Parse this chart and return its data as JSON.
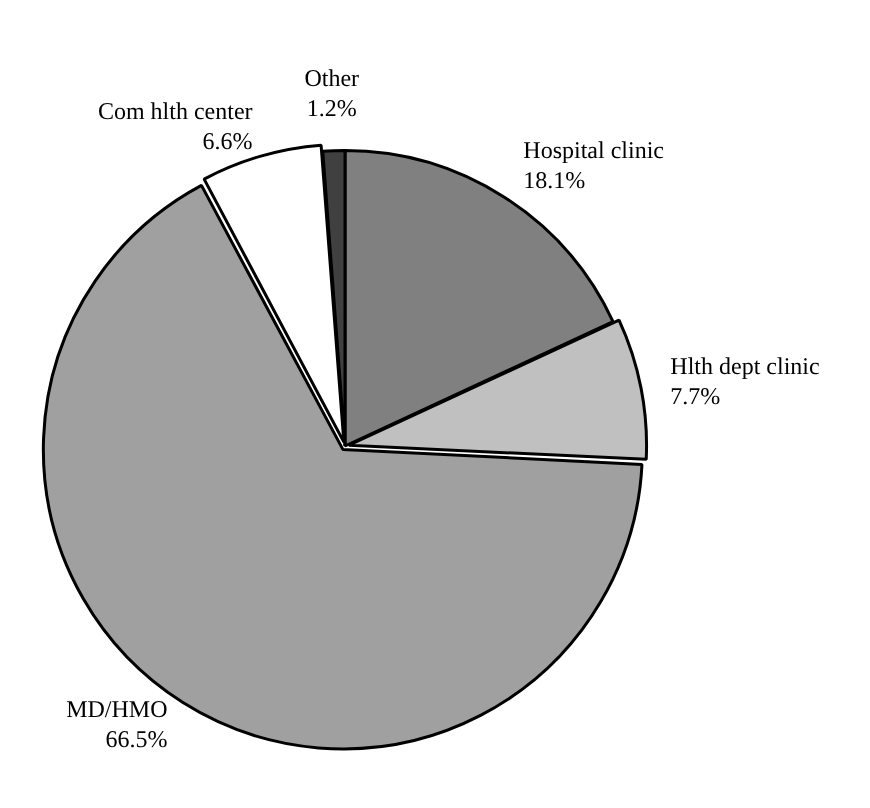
{
  "chart_data": {
    "type": "pie",
    "categories": [
      "Hospital clinic",
      "Hlth dept clinic",
      "MD/HMO",
      "Com hlth center",
      "Other"
    ],
    "values": [
      18.1,
      7.7,
      66.5,
      6.6,
      1.2
    ],
    "value_labels": [
      "18.1%",
      "7.7%",
      "66.5%",
      "6.6%",
      "1.2%"
    ],
    "colors": [
      "#808080",
      "#c0c0c0",
      "#a0a0a0",
      "#ffffff",
      "#404040"
    ],
    "legend": false
  }
}
